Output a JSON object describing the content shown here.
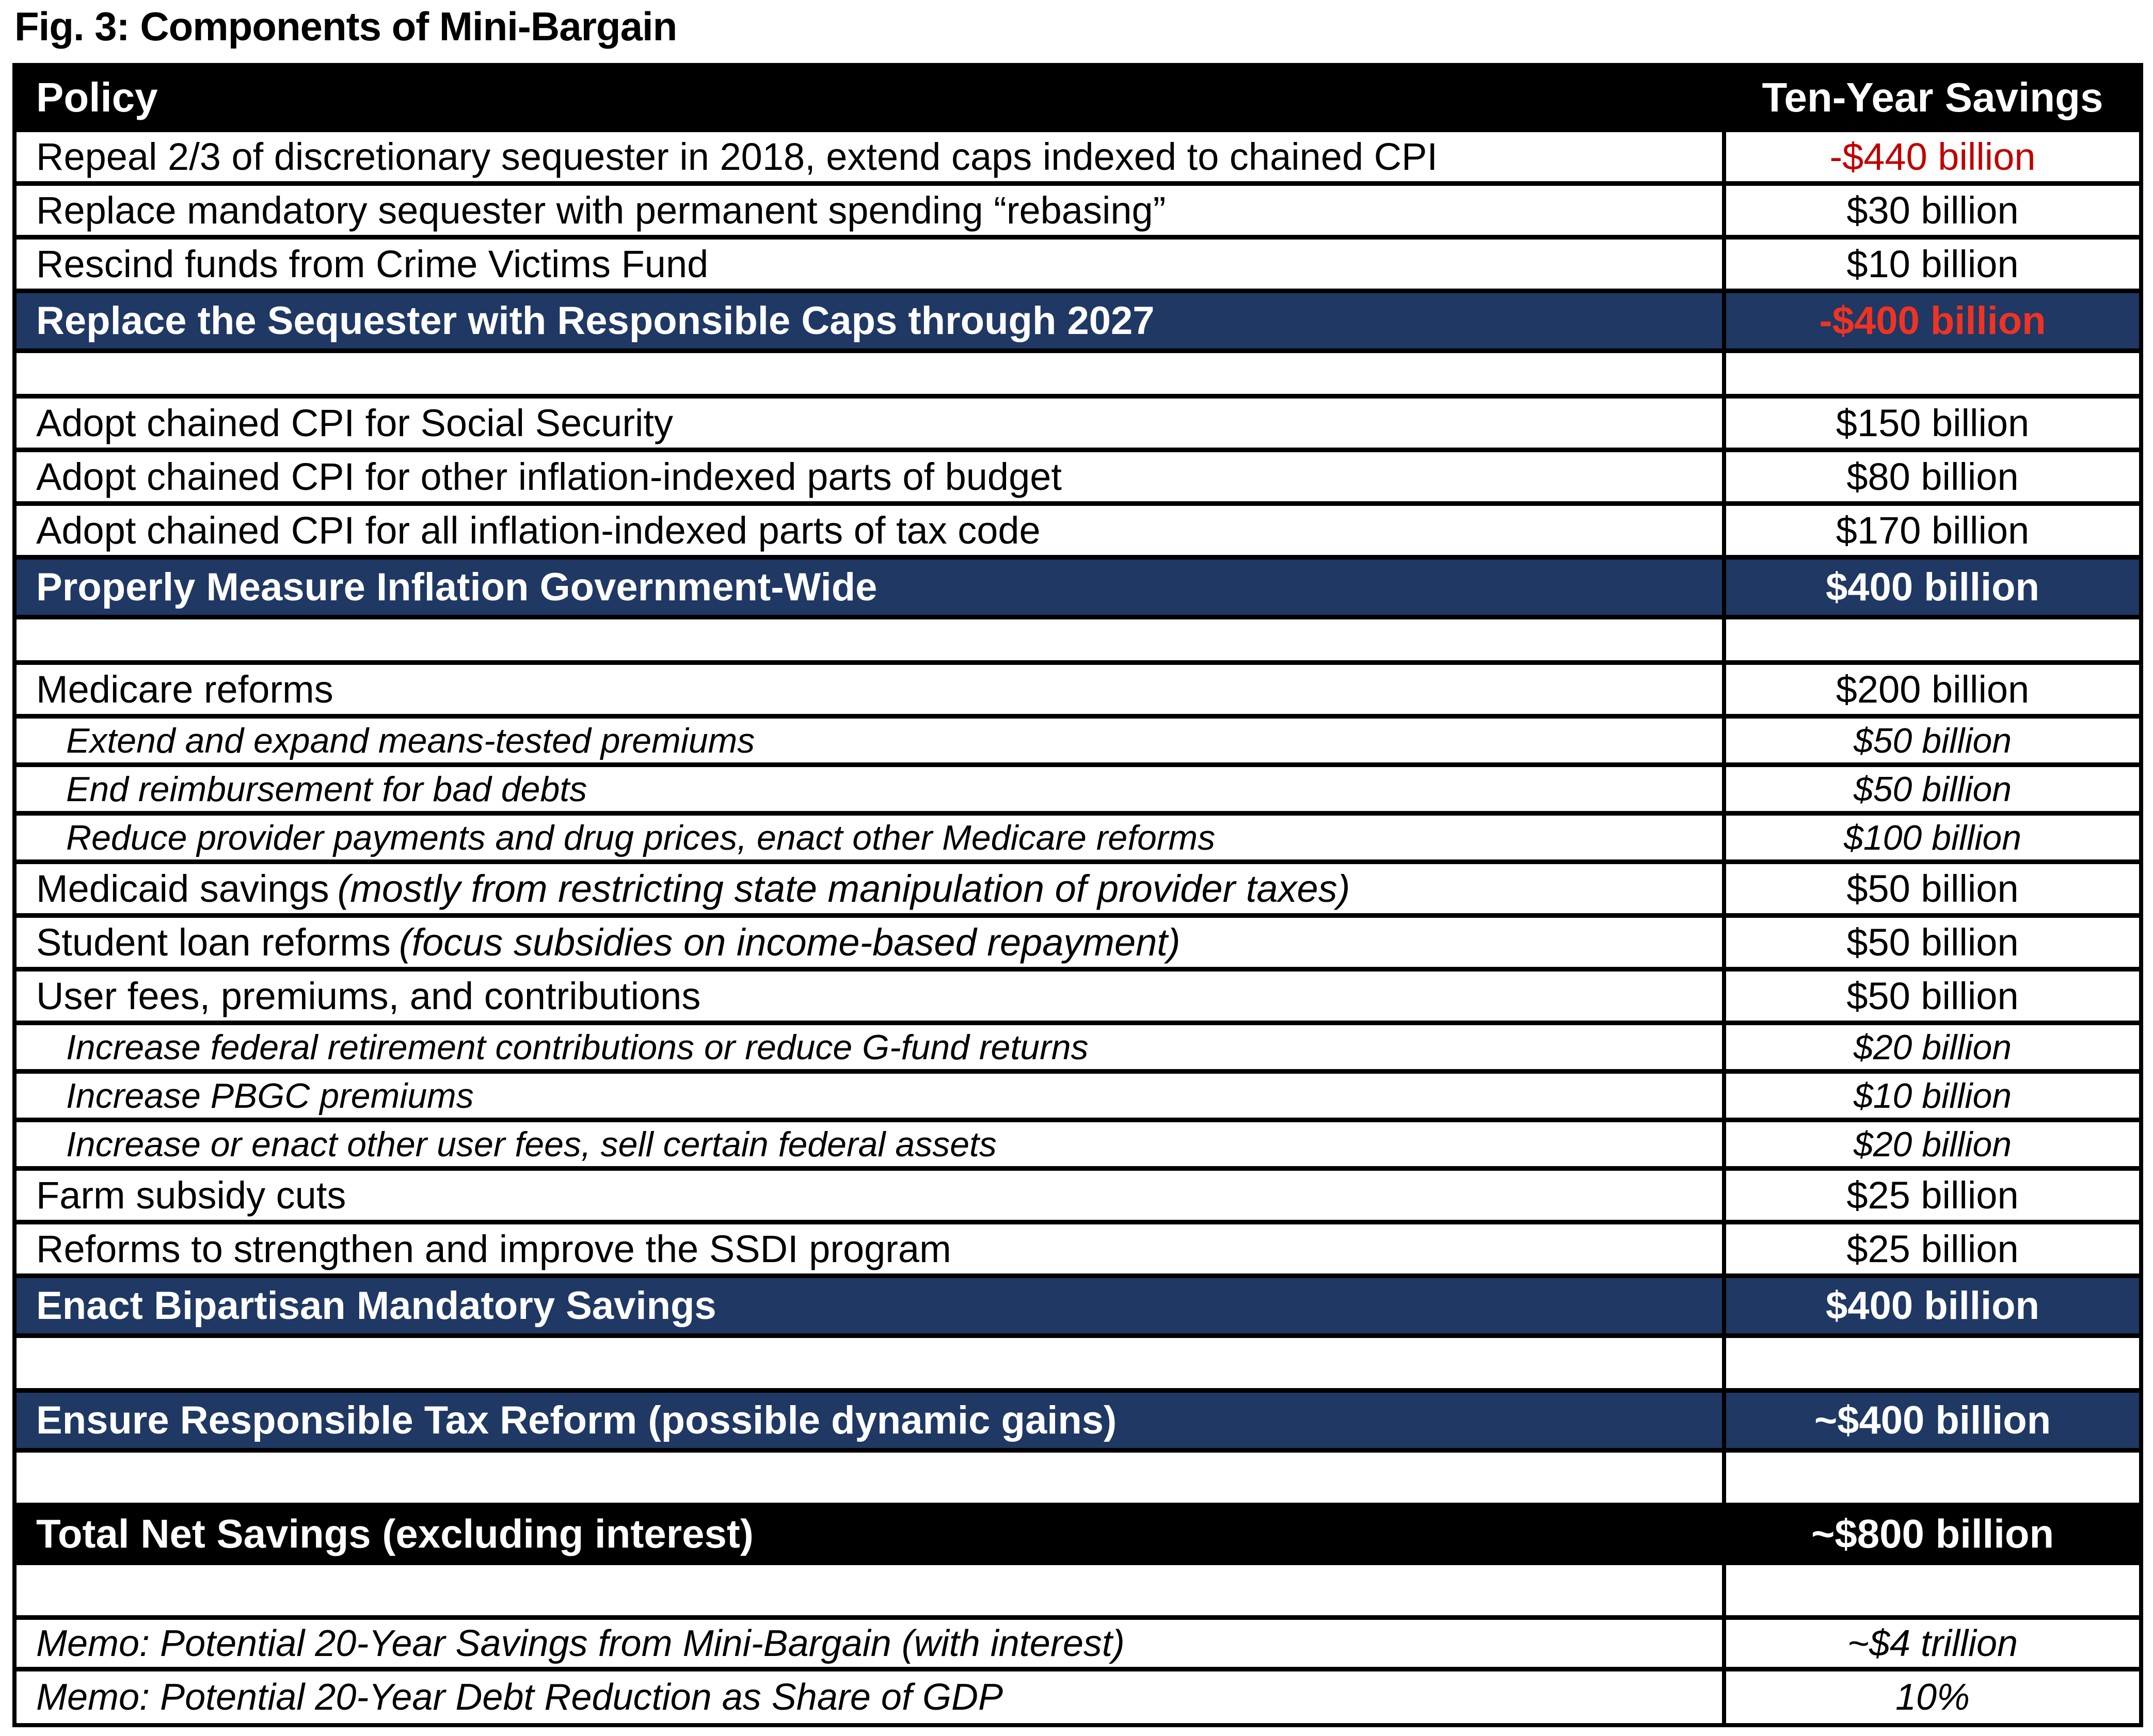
{
  "title": "Fig. 3: Components of Mini-Bargain",
  "colors": {
    "navy": "#1F3864",
    "black": "#000000",
    "white": "#FFFFFF",
    "dark_red": "#C00000",
    "bright_red": "#EF3323"
  },
  "table": {
    "header": {
      "policy": "Policy",
      "savings": "Ten-Year Savings"
    },
    "rows": [
      {
        "type": "item",
        "policy": "Repeal 2/3 of discretionary sequester in 2018, extend caps indexed to chained CPI",
        "value": "-$440 billion",
        "value_color": "dark_red"
      },
      {
        "type": "item",
        "policy": "Replace mandatory sequester with permanent spending “rebasing”",
        "value": "$30 billion"
      },
      {
        "type": "item",
        "policy": "Rescind funds from Crime Victims Fund",
        "value": "$10 billion"
      },
      {
        "type": "section",
        "policy": "Replace the Sequester with Responsible Caps through 2027",
        "value": "-$400 billion",
        "value_color": "bright_red"
      },
      {
        "type": "spacer",
        "size": "small"
      },
      {
        "type": "item",
        "policy": "Adopt chained CPI for Social Security",
        "value": "$150 billion"
      },
      {
        "type": "item",
        "policy": "Adopt chained CPI for other inflation-indexed parts of budget",
        "value": "$80 billion"
      },
      {
        "type": "item",
        "policy": "Adopt chained CPI for all inflation-indexed parts of tax code",
        "value": "$170 billion"
      },
      {
        "type": "section",
        "policy": "Properly Measure Inflation Government-Wide",
        "value": "$400 billion"
      },
      {
        "type": "spacer",
        "size": "small"
      },
      {
        "type": "item",
        "policy": "Medicare reforms",
        "value": "$200 billion"
      },
      {
        "type": "sub",
        "policy": "Extend and expand means-tested premiums",
        "value": "$50 billion"
      },
      {
        "type": "sub",
        "policy": "End reimbursement for bad debts",
        "value": "$50 billion"
      },
      {
        "type": "sub",
        "policy": "Reduce provider payments and drug prices, enact other Medicare reforms",
        "value": "$100 billion"
      },
      {
        "type": "item",
        "policy": "Medicaid savings",
        "policy_italic": "(mostly from restricting state manipulation of provider taxes)",
        "value": "$50 billion"
      },
      {
        "type": "item",
        "policy": "Student loan reforms",
        "policy_italic": "(focus subsidies on income-based repayment)",
        "value": "$50 billion"
      },
      {
        "type": "item",
        "policy": "User fees, premiums, and contributions",
        "value": "$50 billion"
      },
      {
        "type": "sub",
        "policy": "Increase federal retirement contributions or reduce G-fund returns",
        "value": "$20 billion"
      },
      {
        "type": "sub",
        "policy": "Increase PBGC premiums",
        "value": "$10 billion"
      },
      {
        "type": "sub",
        "policy": "Increase or enact other user fees, sell certain federal assets",
        "value": "$20 billion"
      },
      {
        "type": "item",
        "policy": "Farm subsidy cuts",
        "value": "$25 billion"
      },
      {
        "type": "item",
        "policy": "Reforms to strengthen and improve the SSDI program",
        "value": "$25 billion"
      },
      {
        "type": "section",
        "policy": "Enact Bipartisan Mandatory Savings",
        "value": "$400 billion"
      },
      {
        "type": "spacer",
        "size": "large"
      },
      {
        "type": "section",
        "policy": "Ensure Responsible Tax Reform (possible dynamic gains)",
        "value": "~$400 billion"
      },
      {
        "type": "spacer",
        "size": "large"
      },
      {
        "type": "total",
        "policy": "Total Net Savings (excluding interest)",
        "value": "~$800 billion"
      },
      {
        "type": "spacer",
        "size": "large"
      },
      {
        "type": "memo",
        "policy": "Memo: Potential 20-Year Savings from Mini-Bargain (with interest)",
        "value": "~$4 trillion"
      },
      {
        "type": "memo",
        "policy": "Memo: Potential 20-Year Debt Reduction as Share of GDP",
        "value": "10%"
      }
    ]
  }
}
